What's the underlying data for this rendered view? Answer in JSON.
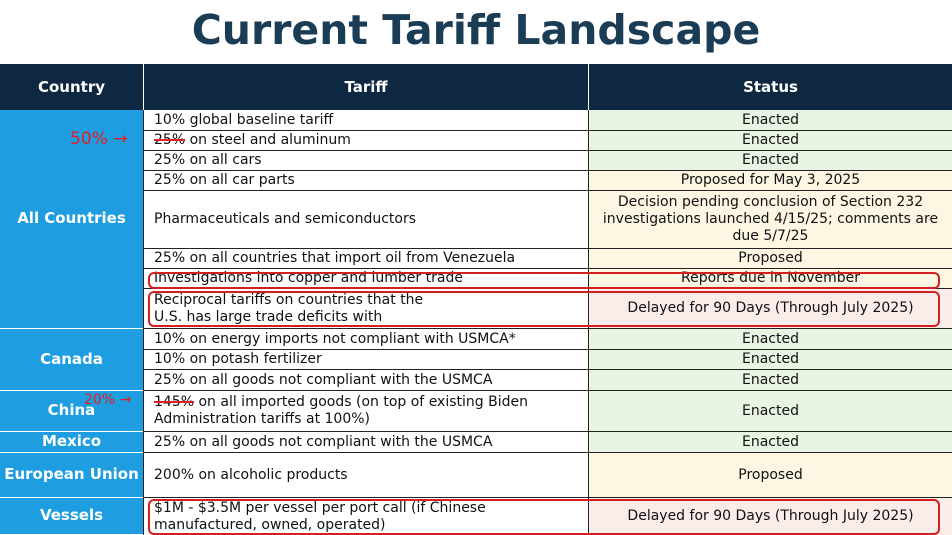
{
  "title": "Current Tariff Landscape",
  "headers": {
    "country": "Country",
    "tariff": "Tariff",
    "status": "Status"
  },
  "countries": {
    "all": "All Countries",
    "canada": "Canada",
    "china": "China",
    "mexico": "Mexico",
    "eu": "European Union",
    "vessels": "Vessels"
  },
  "rows": [
    {
      "tariff": "10% global baseline tariff",
      "status": "Enacted"
    },
    {
      "tariff_struck": "25%",
      "tariff": " on steel and aluminum",
      "status": "Enacted"
    },
    {
      "tariff": "25% on all cars",
      "status": "Enacted"
    },
    {
      "tariff": "25% on all car parts",
      "status": "Proposed for May 3, 2025"
    },
    {
      "tariff": "Pharmaceuticals and semiconductors",
      "status": "Decision pending conclusion of Section 232 investigations launched 4/15/25; comments are due 5/7/25"
    },
    {
      "tariff": "25% on all countries that import oil from Venezuela",
      "status": "Proposed"
    },
    {
      "tariff": "Investigations into copper and lumber trade",
      "status": "Reports due in November"
    },
    {
      "tariff": "Reciprocal tariffs on countries that the U.S. has large trade deficits with",
      "status": "Delayed for 90 Days (Through July 2025)"
    },
    {
      "tariff": "10% on energy imports not compliant with USMCA*",
      "status": "Enacted"
    },
    {
      "tariff": "10% on potash fertilizer",
      "status": "Enacted"
    },
    {
      "tariff": "25% on all goods not compliant with the USMCA",
      "status": "Enacted"
    },
    {
      "tariff_struck": "145%",
      "tariff": " on all imported goods (on top of existing Biden Administration tariffs at 100%)",
      "status": "Enacted"
    },
    {
      "tariff": "25% on all goods not compliant with the USMCA",
      "status": "Enacted"
    },
    {
      "tariff": "200% on alcoholic products",
      "status": "Proposed"
    },
    {
      "tariff": "$1M - $3.5M per vessel per port call (if Chinese manufactured, owned, operated)",
      "status": "Delayed for 90 Days (Through July 2025)"
    }
  ],
  "annotations": {
    "steel": "50%",
    "china": "20%",
    "arrow": "→"
  },
  "colors": {
    "header_bg": "#0e2841",
    "country_bg": "#1e9ee0",
    "enacted_bg": "#e8f5e3",
    "proposed_bg": "#fdf6e3",
    "delayed_bg": "#f9ece9",
    "annotation": "#e02020"
  }
}
